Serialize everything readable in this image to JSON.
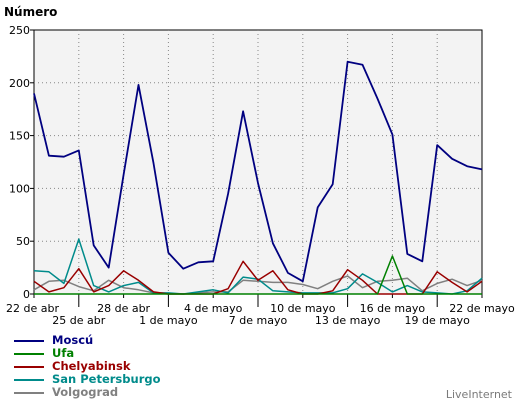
{
  "chart_data": {
    "type": "line",
    "ylabel": "Número",
    "ylim": [
      0,
      250
    ],
    "yticks": [
      0,
      50,
      100,
      150,
      200,
      250
    ],
    "grid": "dotted",
    "legend_placement": "bottom-left",
    "x": [
      "22 de abr",
      "23 de abr",
      "24 de abr",
      "25 de abr",
      "26 de abr",
      "27 de abr",
      "28 de abr",
      "29 de abr",
      "30 de abr",
      "1 de mayo",
      "2 de mayo",
      "3 de mayo",
      "4 de mayo",
      "5 de mayo",
      "6 de mayo",
      "7 de mayo",
      "8 de mayo",
      "9 de mayo",
      "10 de mayo",
      "11 de mayo",
      "12 de mayo",
      "13 de mayo",
      "14 de mayo",
      "15 de mayo",
      "16 de mayo",
      "17 de mayo",
      "18 de mayo",
      "19 de mayo",
      "20 de mayo",
      "21 de mayo",
      "22 de mayo"
    ],
    "xticks_row1": [
      "22 de abr",
      "28 de abr",
      "4 de mayo",
      "10 de mayo",
      "16 de mayo",
      "22 de mayo"
    ],
    "xticks_row2": [
      "25 de abr",
      "1 de mayo",
      "7 de mayo",
      "13 de mayo",
      "19 de mayo"
    ],
    "series": [
      {
        "name": "Moscú",
        "color": "#000080",
        "values": [
          190,
          131,
          130,
          136,
          46,
          25,
          113,
          198,
          124,
          39,
          24,
          30,
          31,
          95,
          173,
          105,
          48,
          20,
          12,
          82,
          104,
          220,
          217,
          185,
          151,
          38,
          31,
          141,
          128,
          121,
          118
        ]
      },
      {
        "name": "Ufa",
        "color": "#008000",
        "values": [
          0,
          0,
          0,
          0,
          0,
          0,
          0,
          0,
          0,
          0,
          0,
          0,
          0,
          0,
          0,
          0,
          0,
          0,
          0,
          0,
          0,
          0,
          0,
          0,
          36,
          0,
          0,
          0,
          0,
          0,
          0
        ]
      },
      {
        "name": "Chelyabinsk",
        "color": "#990000",
        "values": [
          12,
          2,
          6,
          24,
          2,
          8,
          22,
          13,
          2,
          0,
          0,
          0,
          0,
          5,
          31,
          13,
          22,
          4,
          0,
          0,
          3,
          23,
          13,
          0,
          0,
          0,
          0,
          21,
          11,
          2,
          12
        ]
      },
      {
        "name": "San Petersburgo",
        "color": "#008B8B",
        "values": [
          22,
          21,
          10,
          52,
          8,
          2,
          8,
          11,
          1,
          1,
          0,
          2,
          4,
          1,
          16,
          14,
          3,
          2,
          1,
          1,
          1,
          5,
          19,
          11,
          2,
          8,
          2,
          1,
          0,
          3,
          15
        ]
      },
      {
        "name": "Volgograd",
        "color": "#808080",
        "values": [
          4,
          12,
          13,
          7,
          3,
          13,
          6,
          4,
          1,
          0,
          0,
          1,
          2,
          2,
          13,
          12,
          11,
          11,
          9,
          5,
          12,
          17,
          6,
          12,
          13,
          15,
          3,
          10,
          14,
          8,
          13
        ]
      }
    ]
  },
  "brand": "LiveInternet"
}
